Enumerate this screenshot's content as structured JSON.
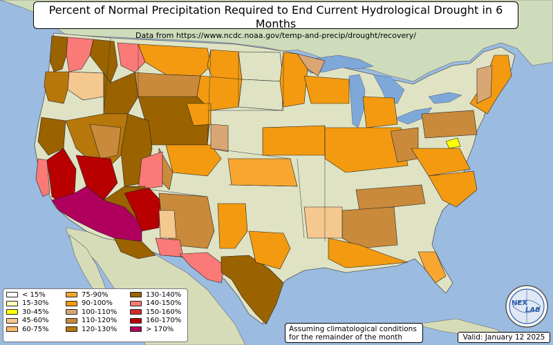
{
  "title": {
    "main": "Percent of Normal Precipitation Required to End Current Hydrological Drought in 6 Months",
    "source": "Data from https://www.ncdc.noaa.gov/temp-and-precip/drought/recovery/"
  },
  "legend": {
    "items": [
      {
        "label": "< 15%",
        "color": "#ffffff"
      },
      {
        "label": "15-30%",
        "color": "#ffffb8"
      },
      {
        "label": "30-45%",
        "color": "#ffff00"
      },
      {
        "label": "45-60%",
        "color": "#f5c890"
      },
      {
        "label": "60-75%",
        "color": "#fcb865"
      },
      {
        "label": "75-90%",
        "color": "#f9a630"
      },
      {
        "label": "90-100%",
        "color": "#f39a10"
      },
      {
        "label": "100-110%",
        "color": "#d9a774"
      },
      {
        "label": "110-120%",
        "color": "#c98a3c"
      },
      {
        "label": "120-130%",
        "color": "#b7770a"
      },
      {
        "label": "130-140%",
        "color": "#9a6300"
      },
      {
        "label": "140-150%",
        "color": "#fa7a78"
      },
      {
        "label": "150-160%",
        "color": "#d12c2c"
      },
      {
        "label": "160-170%",
        "color": "#b80000"
      },
      {
        "label": "> 170%",
        "color": "#b0005e"
      }
    ]
  },
  "note": {
    "line1": "Assuming climatological conditions",
    "line2": "for the remainder of the month"
  },
  "valid": "Valid: January 12 2025",
  "logo": {
    "text1": "NEX",
    "text2": "LAB"
  },
  "colors": {
    "ocean": "#9bbbe0",
    "land": "#dfe3c4",
    "mexico": "#d7dcb8",
    "canada": "#cfdcbc",
    "lakes": "#7ea8d8",
    "water_inland": "#8fb2dc"
  }
}
